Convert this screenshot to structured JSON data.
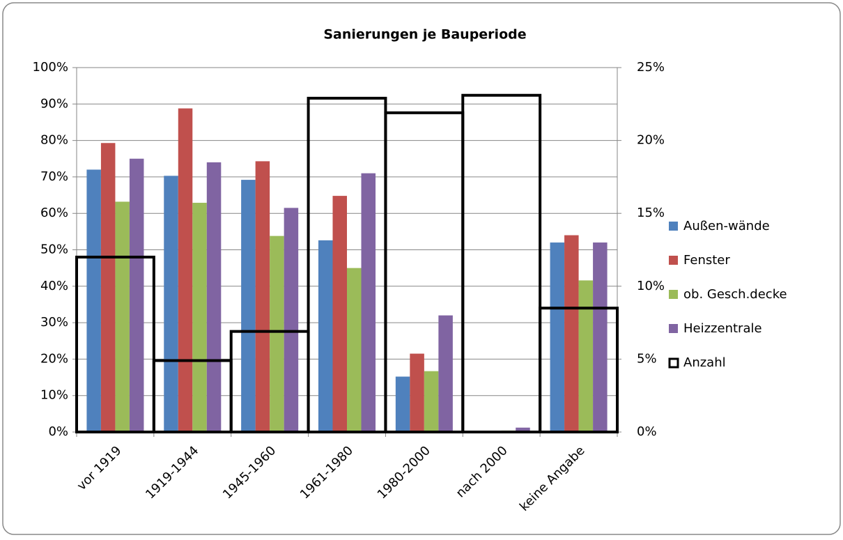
{
  "chart_data": {
    "type": "bar",
    "title": "Sanierungen je Bauperiode",
    "categories": [
      "vor 1919",
      "1919-1944",
      "1945-1960",
      "1961-1980",
      "1980-2000",
      "nach 2000",
      "keine Angabe"
    ],
    "series": [
      {
        "name": "Außen-wände",
        "color": "#4f81bd",
        "values": [
          72,
          70.3,
          69.2,
          52.6,
          15.2,
          0,
          52
        ]
      },
      {
        "name": "Fenster",
        "color": "#c0504d",
        "values": [
          79.3,
          88.8,
          74.3,
          64.8,
          21.5,
          0,
          54
        ]
      },
      {
        "name": "ob. Gesch.decke",
        "color": "#9bbb59",
        "values": [
          63.2,
          62.9,
          53.8,
          45,
          16.7,
          0.4,
          41.6
        ]
      },
      {
        "name": "Heizzentrale",
        "color": "#8064a2",
        "values": [
          75,
          74,
          61.5,
          71,
          32,
          1.2,
          52
        ]
      },
      {
        "name": "Anzahl",
        "color": "#000000",
        "axis": "y2",
        "values": [
          12,
          4.9,
          6.9,
          22.9,
          21.9,
          23.1,
          8.5
        ]
      }
    ],
    "ylim": [
      0,
      100
    ],
    "yticks": [
      {
        "value": 0,
        "label": "0%"
      },
      {
        "value": 10,
        "label": "10%"
      },
      {
        "value": 20,
        "label": "20%"
      },
      {
        "value": 30,
        "label": "30%"
      },
      {
        "value": 40,
        "label": "40%"
      },
      {
        "value": 50,
        "label": "50%"
      },
      {
        "value": 60,
        "label": "60%"
      },
      {
        "value": 70,
        "label": "70%"
      },
      {
        "value": 80,
        "label": "80%"
      },
      {
        "value": 90,
        "label": "90%"
      },
      {
        "value": 100,
        "label": "100%"
      }
    ],
    "y2lim": [
      0,
      25
    ],
    "y2ticks": [
      {
        "value": 0,
        "label": "0%"
      },
      {
        "value": 5,
        "label": "5%"
      },
      {
        "value": 10,
        "label": "10%"
      },
      {
        "value": 15,
        "label": "15%"
      },
      {
        "value": 20,
        "label": "20%"
      },
      {
        "value": 25,
        "label": "25%"
      }
    ],
    "grid": true,
    "legend": "right"
  }
}
